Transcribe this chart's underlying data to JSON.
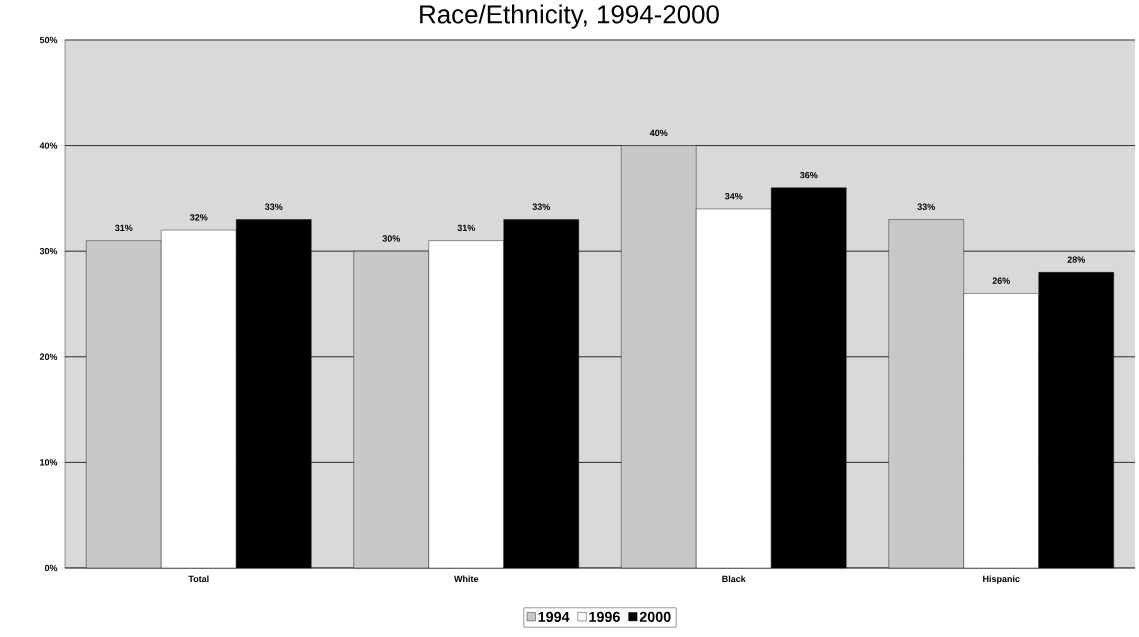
{
  "chart_data": {
    "type": "bar",
    "title": "Race/Ethnicity, 1994-2000",
    "categories": [
      "Total",
      "White",
      "Black",
      "Hispanic"
    ],
    "series": [
      {
        "name": "1994",
        "color": "#c8c8c8",
        "values": [
          31,
          30,
          40,
          33
        ],
        "value_labels": [
          "31%",
          "30%",
          "40%",
          "33%"
        ]
      },
      {
        "name": "1996",
        "color": "#ffffff",
        "values": [
          32,
          31,
          34,
          26
        ],
        "value_labels": [
          "32%",
          "31%",
          "34%",
          "26%"
        ]
      },
      {
        "name": "2000",
        "color": "#000000",
        "values": [
          33,
          33,
          36,
          28
        ],
        "value_labels": [
          "33%",
          "33%",
          "36%",
          "28%"
        ]
      }
    ],
    "ylim": [
      0,
      50
    ],
    "yticks": [
      {
        "value": 0,
        "label": "0%"
      },
      {
        "value": 10,
        "label": "10%"
      },
      {
        "value": 20,
        "label": "20%"
      },
      {
        "value": 30,
        "label": "30%"
      },
      {
        "value": 40,
        "label": "40%"
      },
      {
        "value": 50,
        "label": "50%"
      }
    ],
    "grid": "y",
    "legend": "bottom"
  }
}
